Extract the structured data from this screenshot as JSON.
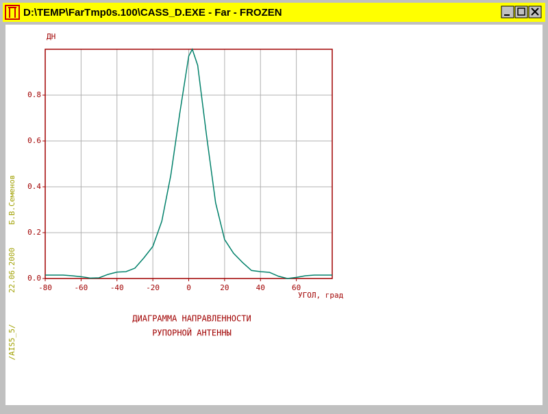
{
  "window": {
    "title": "D:\\TEMP\\FarTmp0s.100\\CASS_D.EXE - Far - FROZEN"
  },
  "chart_data": {
    "type": "line",
    "y_label": "ДН",
    "x_label": "УГОЛ, град",
    "caption": [
      "ДИАГРАММА НАПРАВЛЕННОСТИ",
      "РУПОРНОЙ АНТЕННЫ"
    ],
    "side_text": [
      "/AIS5_5/",
      "22.06.2000",
      "Б.В.Семенов"
    ],
    "x": [
      -80,
      -75,
      -70,
      -65,
      -60,
      -55,
      -50,
      -45,
      -40,
      -35,
      -30,
      -25,
      -20,
      -15,
      -10,
      -5,
      0,
      2,
      5,
      10,
      15,
      20,
      25,
      30,
      35,
      40,
      45,
      50,
      55,
      60,
      65,
      70,
      75,
      80
    ],
    "values": [
      0.015,
      0.015,
      0.015,
      0.012,
      0.008,
      0.002,
      0.003,
      0.018,
      0.028,
      0.03,
      0.045,
      0.09,
      0.14,
      0.25,
      0.45,
      0.72,
      0.97,
      1.0,
      0.93,
      0.62,
      0.33,
      0.17,
      0.11,
      0.07,
      0.035,
      0.03,
      0.027,
      0.01,
      0.0,
      0.005,
      0.012,
      0.015,
      0.015,
      0.015
    ],
    "color": "#00806a",
    "xlim": [
      -80,
      80
    ],
    "ylim": [
      0,
      1
    ],
    "xticks": [
      -80,
      -60,
      -40,
      -20,
      0,
      20,
      40,
      60
    ],
    "yticks": [
      {
        "value": 0,
        "label": "0.0"
      },
      0.2,
      0.4,
      0.6,
      0.8
    ],
    "grid": true
  }
}
